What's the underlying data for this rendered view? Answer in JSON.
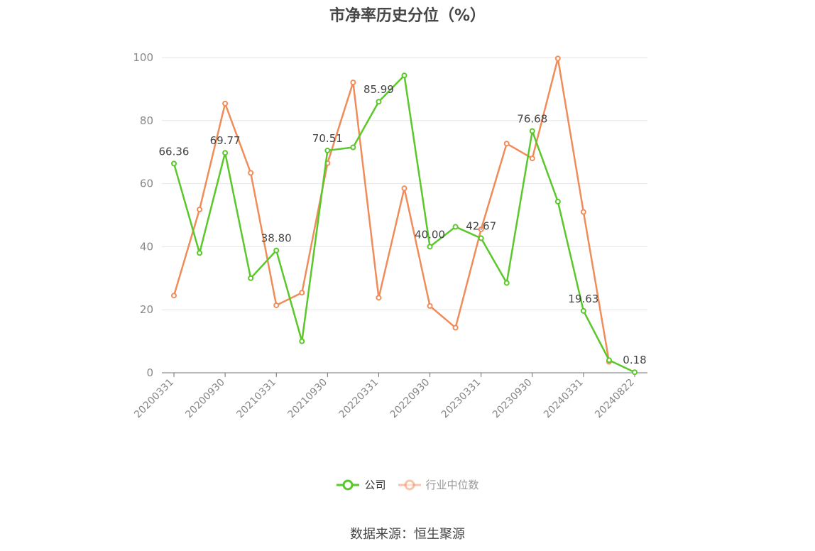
{
  "title": "市净率历史分位（%）",
  "source": "数据来源：恒生聚源",
  "colors": {
    "company": "#5ac72a",
    "industry": "#f08c5a",
    "grid": "#e6e6e6",
    "axis": "#6e7079",
    "tick_text": "#888888"
  },
  "chart_data": {
    "type": "line",
    "title": "市净率历史分位（%）",
    "xlabel": "",
    "ylabel": "",
    "ylim": [
      0,
      100
    ],
    "yticks": [
      0,
      20,
      40,
      60,
      80,
      100
    ],
    "grid": true,
    "legend_position": "bottom",
    "x": [
      "20200331",
      "20200630",
      "20200930",
      "20201231",
      "20210331",
      "20210630",
      "20210930",
      "20211231",
      "20220331",
      "20220630",
      "20220930",
      "20221231",
      "20230331",
      "20230630",
      "20230930",
      "20231231",
      "20240331",
      "20240630",
      "20240822"
    ],
    "xtick_labels": [
      "20200331",
      "20200930",
      "20210331",
      "20210930",
      "20220331",
      "20220930",
      "20230331",
      "20230930",
      "20240331",
      "20240822"
    ],
    "series": [
      {
        "name": "公司",
        "values": [
          66.36,
          38.0,
          69.77,
          30.0,
          38.8,
          10.0,
          70.51,
          71.5,
          85.99,
          94.3,
          40.0,
          46.3,
          42.67,
          28.5,
          76.68,
          54.3,
          19.63,
          4.0,
          0.18
        ],
        "data_labels": [
          {
            "index": 0,
            "text": "66.36"
          },
          {
            "index": 2,
            "text": "69.77"
          },
          {
            "index": 4,
            "text": "38.80"
          },
          {
            "index": 6,
            "text": "70.51"
          },
          {
            "index": 8,
            "text": "85.99"
          },
          {
            "index": 10,
            "text": "40.00"
          },
          {
            "index": 12,
            "text": "42.67"
          },
          {
            "index": 14,
            "text": "76.68"
          },
          {
            "index": 16,
            "text": "19.63"
          },
          {
            "index": 18,
            "text": "0.18"
          }
        ]
      },
      {
        "name": "行业中位数",
        "values": [
          24.5,
          51.8,
          85.4,
          63.4,
          21.4,
          25.4,
          66.5,
          92.1,
          23.8,
          58.5,
          21.2,
          14.3,
          45.5,
          72.7,
          68.0,
          99.7,
          51.0,
          3.5,
          null
        ]
      }
    ]
  }
}
